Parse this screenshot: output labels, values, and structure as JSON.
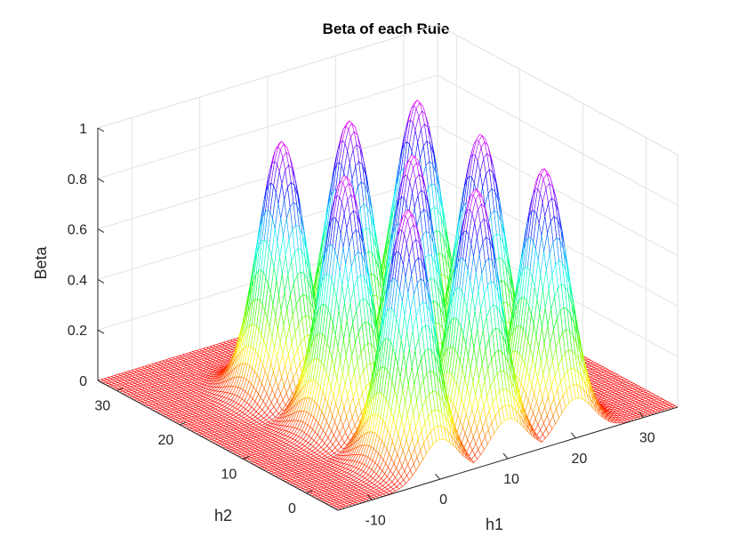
{
  "chart_data": {
    "type": "surface",
    "title": "Beta of each Rule",
    "xlabel": "h1",
    "ylabel": "h2",
    "zlabel": "Beta",
    "xlim": [
      -15,
      35
    ],
    "ylim": [
      -5,
      33
    ],
    "zlim": [
      0,
      1
    ],
    "xticks": [
      -10,
      0,
      10,
      20,
      30
    ],
    "yticks": [
      0,
      10,
      20,
      30
    ],
    "zticks": [
      0,
      0.2,
      0.4,
      0.6,
      0.8,
      1
    ],
    "xtick_labels": [
      "-10",
      "0",
      "10",
      "20",
      "30"
    ],
    "ytick_labels": [
      "0",
      "10",
      "20",
      "30"
    ],
    "ztick_labels": [
      "0",
      "0.2",
      "0.4",
      "0.6",
      "0.8",
      "1"
    ],
    "grid": true,
    "colormap": "hsv",
    "peaks": [
      {
        "h1": 0,
        "h2": 0,
        "beta": 1
      },
      {
        "h1": 10,
        "h2": 0,
        "beta": 1
      },
      {
        "h1": 20,
        "h2": 0,
        "beta": 1
      },
      {
        "h1": 0,
        "h2": 10,
        "beta": 1
      },
      {
        "h1": 10,
        "h2": 10,
        "beta": 1
      },
      {
        "h1": 20,
        "h2": 10,
        "beta": 1
      },
      {
        "h1": 0,
        "h2": 20,
        "beta": 1
      },
      {
        "h1": 10,
        "h2": 20,
        "beta": 1
      },
      {
        "h1": 20,
        "h2": 20,
        "beta": 1
      }
    ],
    "peak_width": 2.6
  }
}
